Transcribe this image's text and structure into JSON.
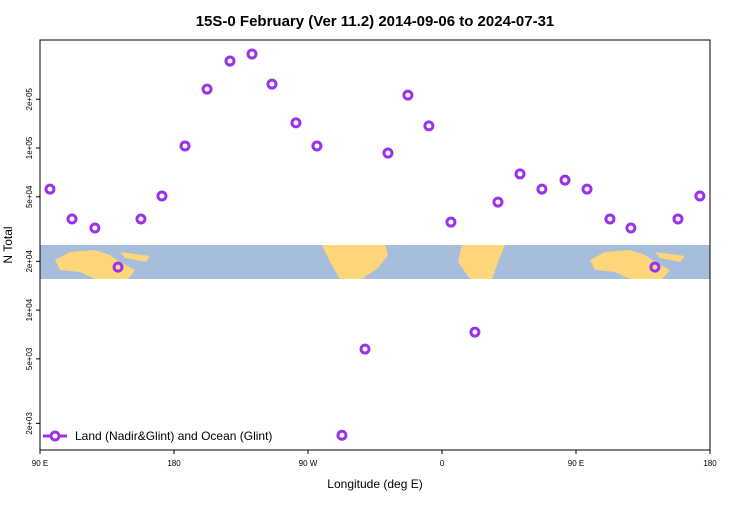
{
  "chart_data": {
    "type": "scatter",
    "title": "15S-0 February (Ver 11.2)   2014-09-06 to 2024-07-31",
    "x_label": "Longitude (deg E)",
    "y_label": "N Total",
    "yscale": "log",
    "xlim": [
      90,
      540
    ],
    "ylim": [
      1370,
      464000
    ],
    "xticks": [
      {
        "value": 90,
        "label": "90 E"
      },
      {
        "value": 180,
        "label": "180"
      },
      {
        "value": 270,
        "label": "90 W"
      },
      {
        "value": 360,
        "label": "0"
      },
      {
        "value": 450,
        "label": "90 E"
      },
      {
        "value": 540,
        "label": "180"
      }
    ],
    "yticks": [
      {
        "value": 2000,
        "label": "2e+03"
      },
      {
        "value": 5000,
        "label": "5e+03"
      },
      {
        "value": 10000,
        "label": "1e+04"
      },
      {
        "value": 20000,
        "label": "2e+04"
      },
      {
        "value": 50000,
        "label": "5e+04"
      },
      {
        "value": 100000,
        "label": "1e+05"
      },
      {
        "value": 200000,
        "label": "2e+05"
      }
    ],
    "legend": "bottom-left",
    "series": [
      {
        "name": "Land (Nadir&Glint) and Ocean (Glint)",
        "color": "#9b30ee",
        "x": [
          96.7,
          111.5,
          126.9,
          142.4,
          157.8,
          171.9,
          187.4,
          202.2,
          217.6,
          232.4,
          245.8,
          261.9,
          276,
          292.8,
          308.3,
          323.7,
          337.1,
          351.2,
          366,
          382.1,
          397.6,
          412.4,
          427.1,
          442.6,
          457.4,
          472.8,
          486.9,
          503,
          518.5,
          533.2
        ],
        "values": [
          55800,
          36500,
          32100,
          18400,
          36500,
          50600,
          103000,
          231000,
          344000,
          380000,
          248000,
          143000,
          103000,
          1690,
          5740,
          93100,
          212000,
          137000,
          34900,
          7310,
          46400,
          69200,
          55800,
          63400,
          55800,
          36500,
          32100,
          18400,
          36500,
          50600
        ]
      }
    ]
  }
}
